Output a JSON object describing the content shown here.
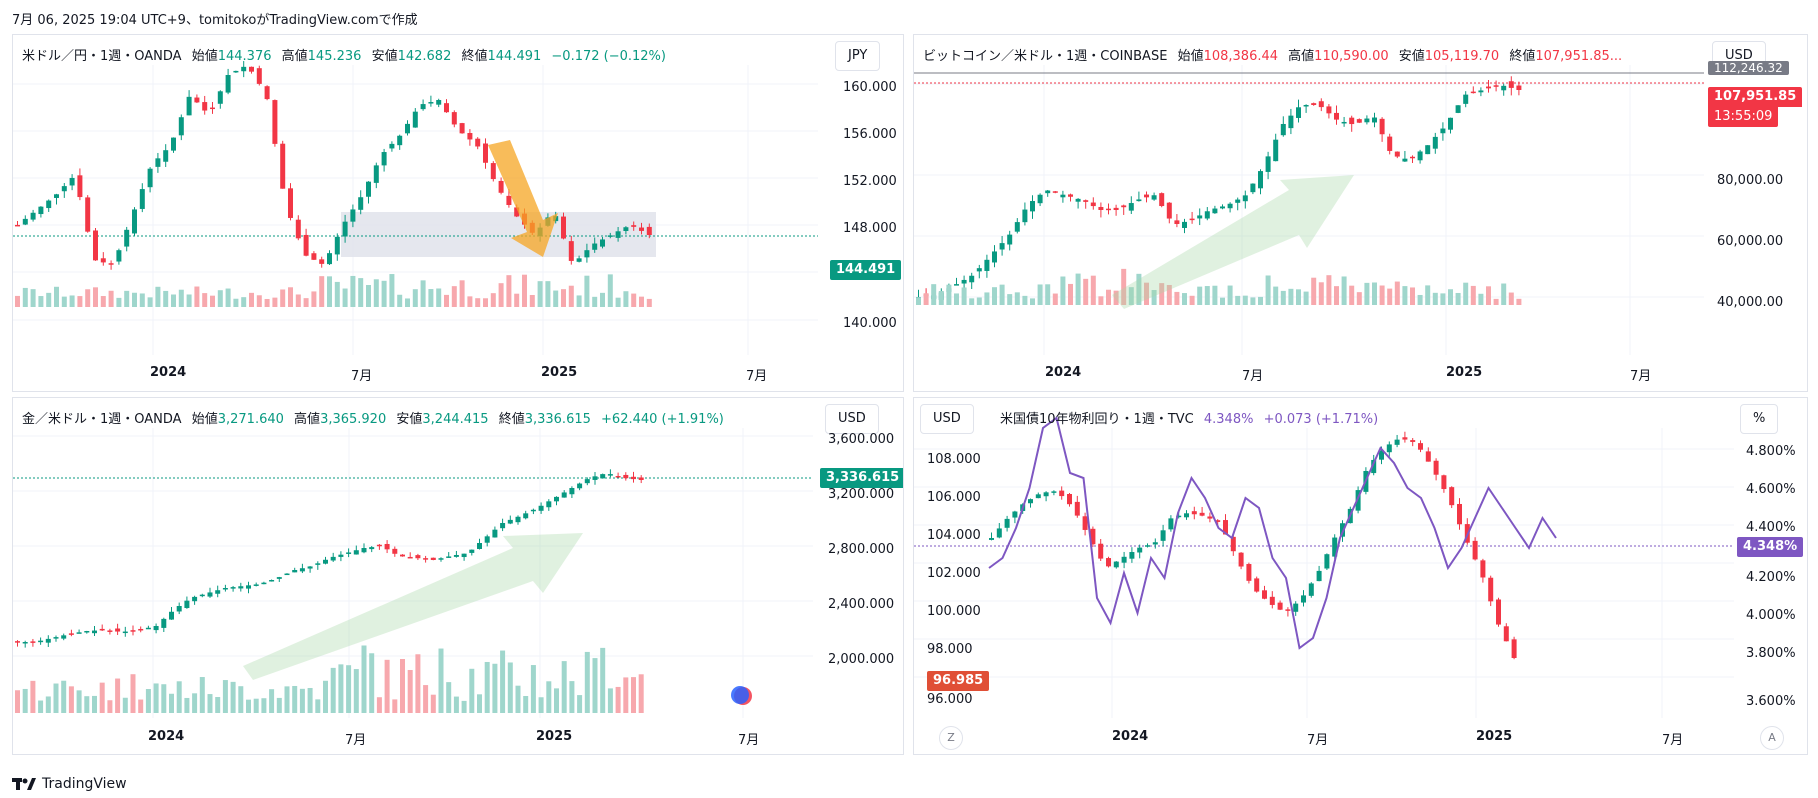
{
  "header": "7月 06, 2025 19:04 UTC+9、tomitokoがTradingView.comで作成",
  "footer": {
    "logo": "TradingView"
  },
  "panels": {
    "usdjpy": {
      "symbol": "米ドル／円・1週・OANDA",
      "o_lbl": "始値",
      "o": "144.376",
      "h_lbl": "高値",
      "h": "145.236",
      "l_lbl": "安値",
      "l": "142.682",
      "c_lbl": "終値",
      "c": "144.491",
      "chg": "−0.172 (−0.12%)",
      "currency": "JPY",
      "price_ticks": [
        "160.000",
        "156.000",
        "152.000",
        "148.000",
        "140.000"
      ],
      "last_tag": "144.491",
      "time_ticks": [
        "2024",
        "7月",
        "2025",
        "7月"
      ]
    },
    "btcusd": {
      "symbol": "ビットコイン／米ドル・1週・COINBASE",
      "o_lbl": "始値",
      "o": "108,386.44",
      "h_lbl": "高値",
      "h": "110,590.00",
      "l_lbl": "安値",
      "l": "105,119.70",
      "c_lbl": "終値",
      "c": "107,951.85...",
      "currency": "USD",
      "price_ticks": [
        "80,000.00",
        "60,000.00",
        "40,000.00"
      ],
      "top_tag": "112,246.32",
      "last_tag": "107,951.85",
      "countdown": "13:55:09",
      "time_ticks": [
        "2024",
        "7月",
        "2025",
        "7月"
      ]
    },
    "xauusd": {
      "symbol": "金／米ドル・1週・OANDA",
      "o_lbl": "始値",
      "o": "3,271.640",
      "h_lbl": "高値",
      "h": "3,365.920",
      "l_lbl": "安値",
      "l": "3,244.415",
      "c_lbl": "終値",
      "c": "3,336.615",
      "chg": "+62.440 (+1.91%)",
      "currency": "USD",
      "price_ticks": [
        "3,600.000",
        "3,200.000",
        "2,800.000",
        "2,400.000",
        "2,000.000"
      ],
      "last_tag": "3,336.615",
      "time_ticks": [
        "2024",
        "7月",
        "2025",
        "7月"
      ]
    },
    "us10y": {
      "symbol": "米国債10年物利回り・1週・TVC",
      "last": "4.348%",
      "chg": "+0.073 (+1.71%)",
      "left_currency": "USD",
      "right_unit": "%",
      "left_ticks": [
        "108.000",
        "106.000",
        "104.000",
        "102.000",
        "100.000",
        "98.000",
        "96.000"
      ],
      "right_ticks": [
        "4.800%",
        "4.600%",
        "4.400%",
        "4.200%",
        "4.000%",
        "3.800%",
        "3.600%"
      ],
      "left_tag": "96.985",
      "right_tag": "4.348%",
      "time_ticks": [
        "2024",
        "7月",
        "2025",
        "7月"
      ],
      "z_btn": "Z",
      "a_btn": "A"
    }
  },
  "colors": {
    "up": "#089981",
    "down": "#f23645",
    "vol_up": "#9fd6cc",
    "vol_down": "#f7a8ad",
    "yield": "#7e57c2",
    "dxy_line": "#2962ff"
  }
}
